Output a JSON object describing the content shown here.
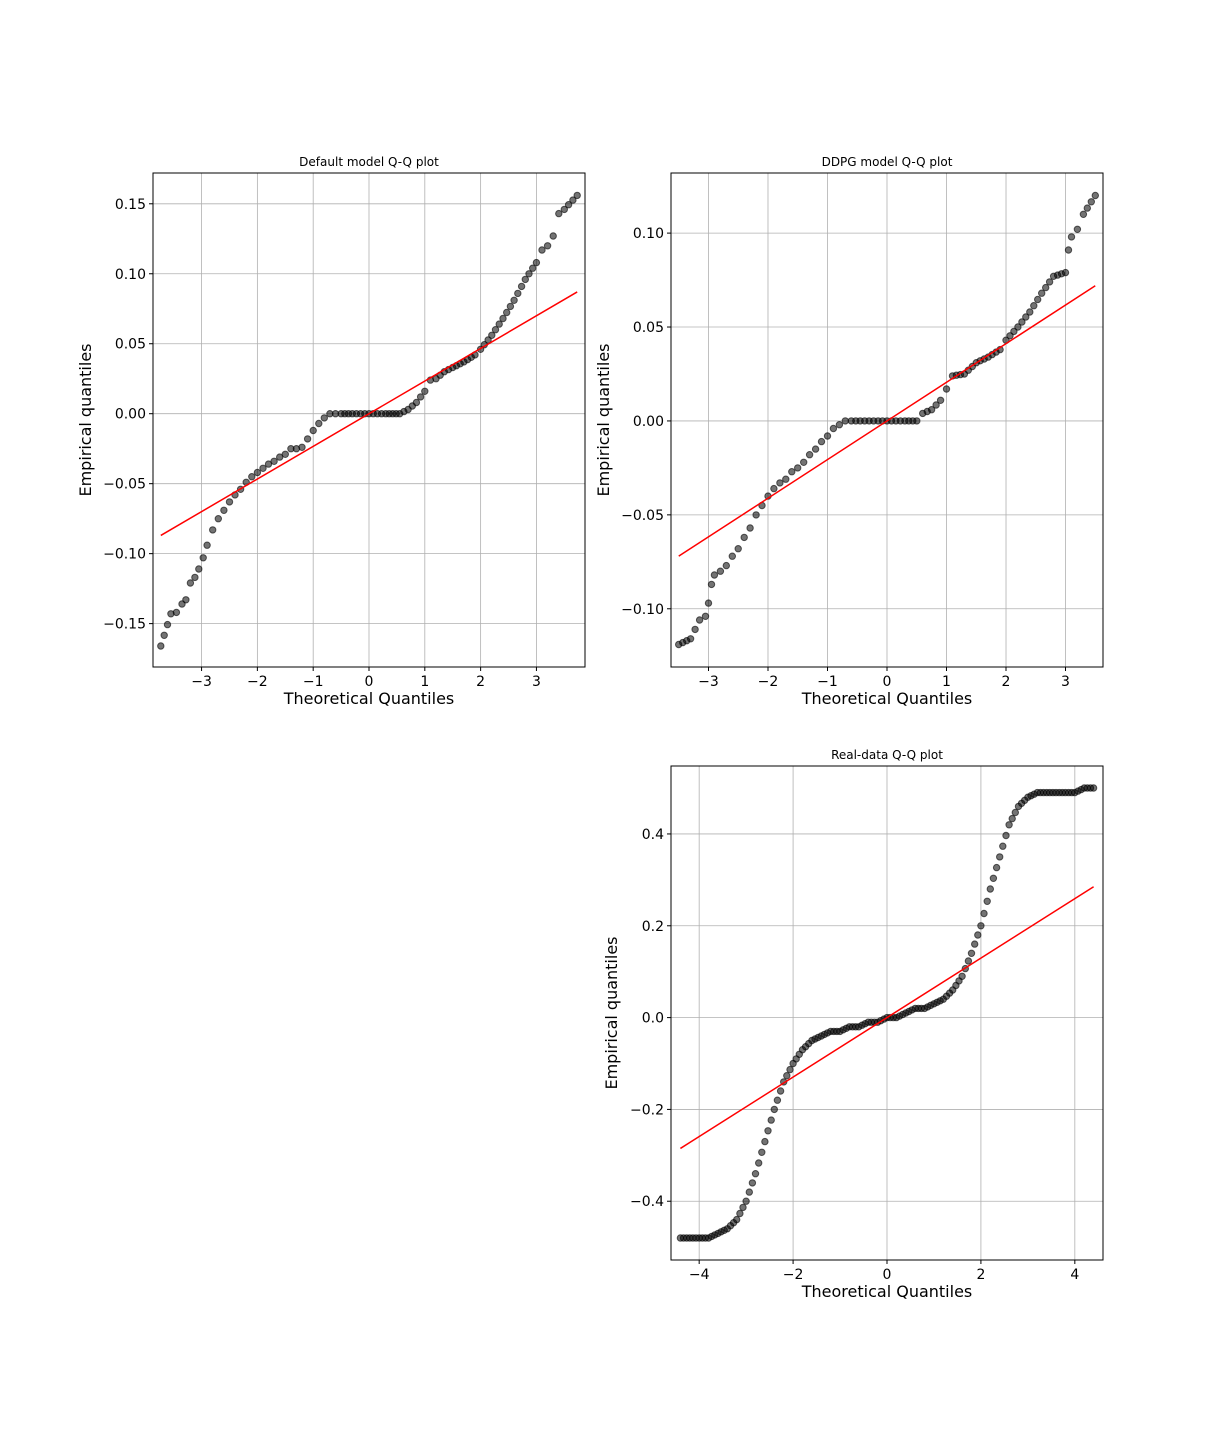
{
  "colors": {
    "point_fill": "#000000",
    "point_fill_opacity": 0.55,
    "fit_line": "#ff0000",
    "grid": "#b0b0b0"
  },
  "chart_data": [
    {
      "type": "scatter",
      "title": "Default model Q-Q plot",
      "xlabel": "Theoretical Quantiles",
      "ylabel": "Empirical quantiles",
      "xlim": [
        -3.87,
        3.87
      ],
      "ylim": [
        -0.181,
        0.172
      ],
      "xticks": [
        -3,
        -2,
        -1,
        0,
        1,
        2,
        3
      ],
      "xtick_labels": [
        "−3",
        "−2",
        "−1",
        "0",
        "1",
        "2",
        "3"
      ],
      "yticks": [
        -0.15,
        -0.1,
        -0.05,
        0.0,
        0.05,
        0.1,
        0.15
      ],
      "ytick_labels": [
        "−0.15",
        "−0.10",
        "−0.05",
        "0.00",
        "0.05",
        "0.10",
        "0.15"
      ],
      "grid": true,
      "reference_line": {
        "x": [
          -3.73,
          3.73
        ],
        "y": [
          -0.087,
          0.087
        ]
      },
      "series": [
        {
          "x": [
            -3.73,
            -3.55,
            -3.45,
            -3.35,
            -3.28,
            -3.2,
            -3.12,
            -3.05,
            -2.97,
            -2.9,
            -2.8,
            -2.7,
            -2.6,
            -2.5,
            -2.4,
            -2.3,
            -2.2,
            -2.1,
            -2.0,
            -1.9,
            -1.8,
            -1.7,
            -1.6,
            -1.5,
            -1.4,
            -1.3,
            -1.2,
            -1.1,
            -1.0,
            -0.9,
            -0.8,
            -0.7,
            -0.6,
            -0.5,
            -0.3,
            0.0,
            0.3,
            0.55,
            0.7,
            0.85,
            1.0,
            1.1,
            1.2,
            1.35,
            1.5,
            1.7,
            1.9,
            2.0,
            2.2,
            2.4,
            2.6,
            2.8,
            3.0,
            3.1,
            3.2,
            3.3,
            3.4,
            3.5,
            3.73
          ],
          "y": [
            -0.166,
            -0.143,
            -0.142,
            -0.136,
            -0.133,
            -0.121,
            -0.117,
            -0.111,
            -0.103,
            -0.094,
            -0.083,
            -0.075,
            -0.069,
            -0.063,
            -0.058,
            -0.054,
            -0.049,
            -0.045,
            -0.042,
            -0.039,
            -0.036,
            -0.034,
            -0.031,
            -0.029,
            -0.025,
            -0.025,
            -0.024,
            -0.018,
            -0.012,
            -0.007,
            -0.003,
            0.0,
            0.0,
            0.0,
            0.0,
            0.0,
            0.0,
            0.0,
            0.003,
            0.008,
            0.016,
            0.024,
            0.025,
            0.03,
            0.033,
            0.037,
            0.042,
            0.046,
            0.056,
            0.068,
            0.081,
            0.096,
            0.108,
            0.117,
            0.12,
            0.127,
            0.143,
            0.146,
            0.156
          ]
        }
      ]
    },
    {
      "type": "scatter",
      "title": "DDPG model Q-Q plot",
      "xlabel": "Theoretical Quantiles",
      "ylabel": "Empirical quantiles",
      "xlim": [
        -3.63,
        3.63
      ],
      "ylim": [
        -0.131,
        0.132
      ],
      "xticks": [
        -3,
        -2,
        -1,
        0,
        1,
        2,
        3
      ],
      "xtick_labels": [
        "−3",
        "−2",
        "−1",
        "0",
        "1",
        "2",
        "3"
      ],
      "yticks": [
        -0.1,
        -0.05,
        0.0,
        0.05,
        0.1
      ],
      "ytick_labels": [
        "−0.10",
        "−0.05",
        "0.00",
        "0.05",
        "0.10"
      ],
      "grid": true,
      "reference_line": {
        "x": [
          -3.5,
          3.5
        ],
        "y": [
          -0.072,
          0.072
        ]
      },
      "series": [
        {
          "x": [
            -3.5,
            -3.3,
            -3.15,
            -3.05,
            -3.0,
            -2.95,
            -2.9,
            -2.8,
            -2.7,
            -2.6,
            -2.5,
            -2.4,
            -2.3,
            -2.2,
            -2.1,
            -2.0,
            -1.9,
            -1.8,
            -1.7,
            -1.6,
            -1.5,
            -1.4,
            -1.3,
            -1.2,
            -1.1,
            -1.0,
            -0.9,
            -0.8,
            -0.7,
            -0.6,
            -0.3,
            0.0,
            0.3,
            0.5,
            0.6,
            0.75,
            0.9,
            1.0,
            1.1,
            1.3,
            1.5,
            1.7,
            1.9,
            2.0,
            2.2,
            2.4,
            2.6,
            2.8,
            3.0,
            3.05,
            3.1,
            3.2,
            3.3,
            3.5
          ],
          "y": [
            -0.119,
            -0.116,
            -0.106,
            -0.104,
            -0.097,
            -0.087,
            -0.082,
            -0.08,
            -0.077,
            -0.072,
            -0.068,
            -0.062,
            -0.057,
            -0.05,
            -0.045,
            -0.04,
            -0.036,
            -0.033,
            -0.031,
            -0.027,
            -0.025,
            -0.022,
            -0.018,
            -0.015,
            -0.011,
            -0.008,
            -0.004,
            -0.002,
            0.0,
            0.0,
            0.0,
            0.0,
            0.0,
            0.0,
            0.004,
            0.006,
            0.011,
            0.017,
            0.024,
            0.025,
            0.031,
            0.034,
            0.038,
            0.043,
            0.05,
            0.058,
            0.068,
            0.077,
            0.079,
            0.091,
            0.098,
            0.102,
            0.11,
            0.12
          ]
        }
      ]
    },
    {
      "type": "scatter",
      "title": "Real-data Q-Q plot",
      "xlabel": "Theoretical Quantiles",
      "ylabel": "Empirical quantiles",
      "xlim": [
        -4.6,
        4.6
      ],
      "ylim": [
        -0.528,
        0.548
      ],
      "xticks": [
        -4,
        -2,
        0,
        2,
        4
      ],
      "xtick_labels": [
        "−4",
        "−2",
        "0",
        "2",
        "4"
      ],
      "yticks": [
        -0.4,
        -0.2,
        0.0,
        0.2,
        0.4
      ],
      "ytick_labels": [
        "−0.4",
        "−0.2",
        "0.0",
        "0.2",
        "0.4"
      ],
      "grid": true,
      "reference_line": {
        "x": [
          -4.4,
          4.4
        ],
        "y": [
          -0.285,
          0.285
        ]
      },
      "series": [
        {
          "x": [
            -4.4,
            -4.2,
            -4.0,
            -3.8,
            -3.6,
            -3.4,
            -3.2,
            -3.0,
            -2.8,
            -2.6,
            -2.4,
            -2.2,
            -2.0,
            -1.8,
            -1.6,
            -1.4,
            -1.2,
            -1.0,
            -0.8,
            -0.6,
            -0.4,
            -0.2,
            0.0,
            0.2,
            0.4,
            0.6,
            0.8,
            1.0,
            1.2,
            1.4,
            1.6,
            1.8,
            2.0,
            2.2,
            2.4,
            2.6,
            2.8,
            3.0,
            3.2,
            3.4,
            3.6,
            3.8,
            4.0,
            4.2,
            4.4
          ],
          "y": [
            -0.48,
            -0.48,
            -0.48,
            -0.48,
            -0.47,
            -0.46,
            -0.44,
            -0.4,
            -0.34,
            -0.27,
            -0.2,
            -0.14,
            -0.1,
            -0.07,
            -0.05,
            -0.04,
            -0.03,
            -0.03,
            -0.02,
            -0.02,
            -0.01,
            -0.01,
            0.0,
            0.0,
            0.01,
            0.02,
            0.02,
            0.03,
            0.04,
            0.06,
            0.09,
            0.14,
            0.2,
            0.28,
            0.35,
            0.42,
            0.46,
            0.48,
            0.49,
            0.49,
            0.49,
            0.49,
            0.49,
            0.5,
            0.5
          ]
        }
      ]
    }
  ]
}
